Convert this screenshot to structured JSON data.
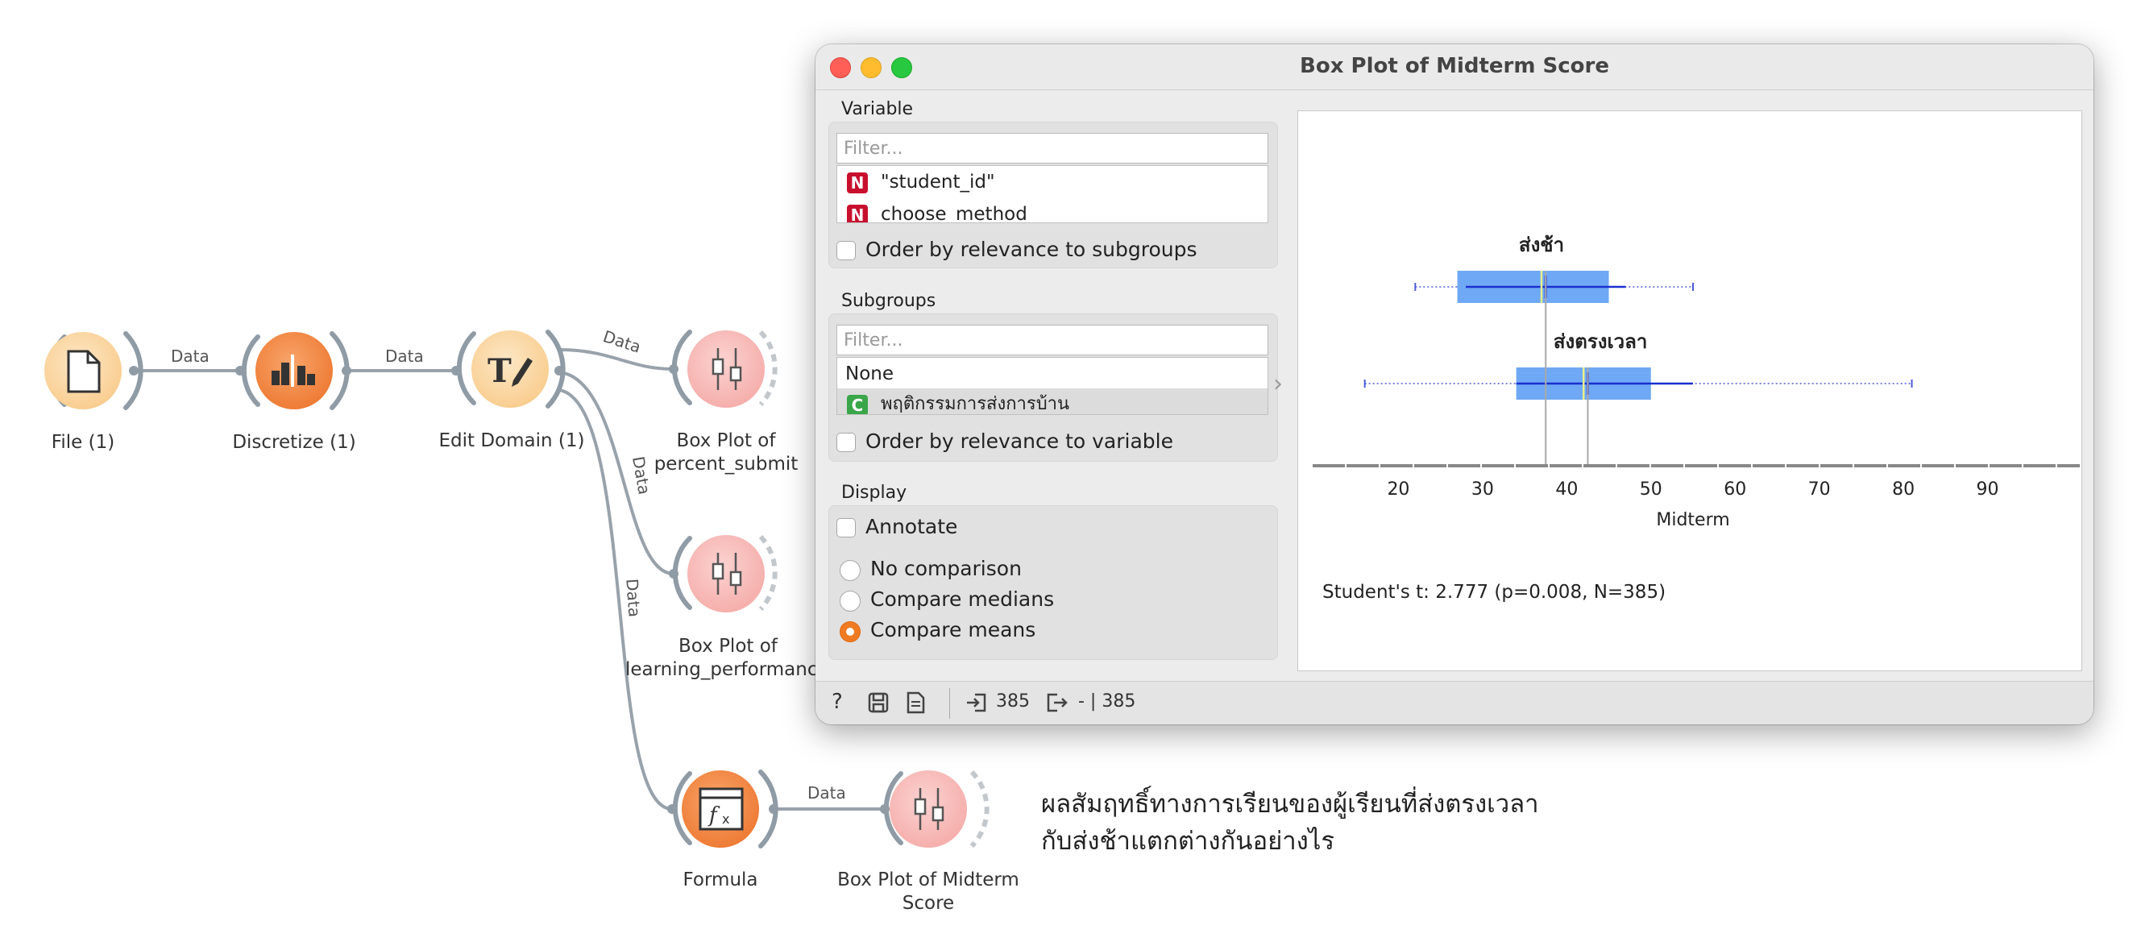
{
  "canvas": {
    "nodes": {
      "file": "File (1)",
      "discretize": "Discretize (1)",
      "edit_domain": "Edit Domain (1)",
      "box_percent": [
        "Box Plot of",
        "percent_submit"
      ],
      "box_learning": [
        "Box Plot of",
        "learning_performanc"
      ],
      "formula": "Formula",
      "box_midterm": [
        "Box Plot of Midterm",
        "Score"
      ]
    },
    "link_label": "Data",
    "note": [
      "ผลสัมฤทธิ์ทางการเรียนของผู้เรียนที่ส่งตรงเวลา",
      "กับส่งช้าแตกต่างกันอย่างไร"
    ]
  },
  "window": {
    "title": "Box Plot of Midterm Score",
    "variable": {
      "heading": "Variable",
      "filter_placeholder": "Filter...",
      "items": [
        {
          "badge": "N",
          "label": "\"student_id\""
        },
        {
          "badge": "N",
          "label": "choose_method"
        }
      ],
      "order_label": "Order by relevance to subgroups"
    },
    "subgroups": {
      "heading": "Subgroups",
      "filter_placeholder": "Filter...",
      "items": [
        {
          "badge": "",
          "label": "None"
        },
        {
          "badge": "C",
          "label": "พฤติกรรมการส่งการบ้าน"
        }
      ],
      "order_label": "Order by relevance to variable"
    },
    "display": {
      "heading": "Display",
      "annotate_label": "Annotate",
      "options": [
        "No comparison",
        "Compare medians",
        "Compare means"
      ],
      "selected": "Compare means"
    },
    "status": {
      "input_count": "385",
      "output_count": "- | 385"
    }
  },
  "colors": {
    "accent": "#f07b22",
    "box_fill": "#6fa8f4",
    "discrete_badge": "#c8102e",
    "continuous_badge": "#3aa64a"
  },
  "chart_data": {
    "type": "box",
    "orientation": "horizontal",
    "categories": [
      "ส่งช้า",
      "ส่งตรงเวลา"
    ],
    "boxes": [
      {
        "label": "ส่งช้า",
        "min": 22,
        "q1": 27,
        "median": 37,
        "mean": 37.5,
        "q3": 45,
        "max": 55,
        "sd_low": 28,
        "sd_high": 47
      },
      {
        "label": "ส่งตรงเวลา",
        "min": 16,
        "q1": 34,
        "median": 42,
        "mean": 42.5,
        "q3": 50,
        "max": 81,
        "sd_low": 34,
        "sd_high": 55
      }
    ],
    "xlabel": "Midterm",
    "x_ticks": [
      20,
      30,
      40,
      50,
      60,
      70,
      80,
      90
    ],
    "xlim": [
      10,
      100
    ],
    "stat_text": "Student's t: 2.777 (p=0.008, N=385)"
  }
}
